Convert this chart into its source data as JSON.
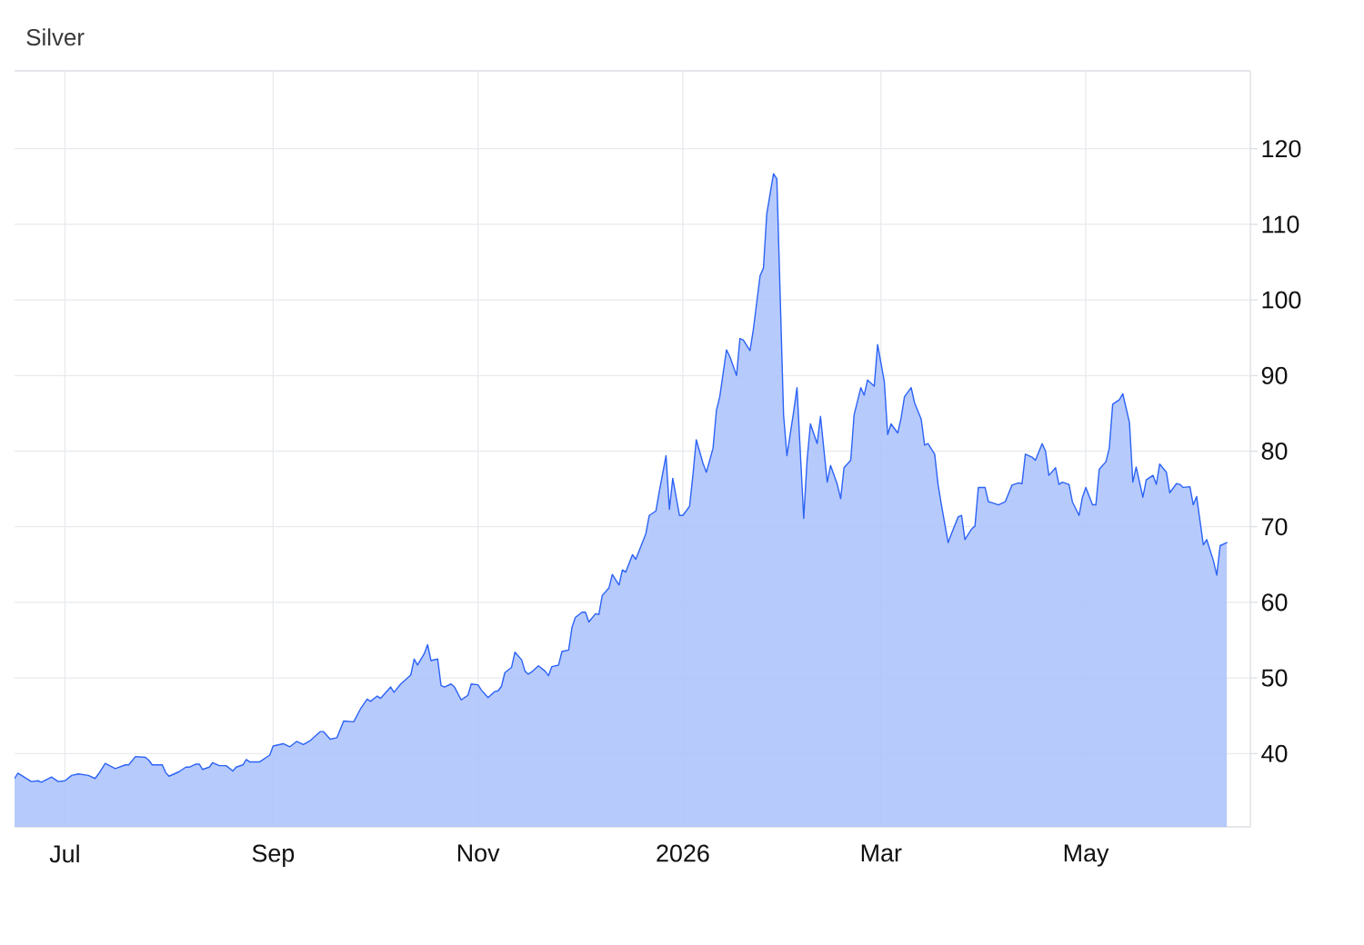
{
  "chart_data": {
    "type": "area",
    "title": "Silver",
    "color": "#2b63f6",
    "x": [
      "2025-06-16",
      "2025-06-17",
      "2025-06-21",
      "2025-06-23",
      "2025-06-24",
      "2025-06-27",
      "2025-06-29",
      "2025-07-01",
      "2025-07-03",
      "2025-07-05",
      "2025-07-08",
      "2025-07-10",
      "2025-07-11",
      "2025-07-13",
      "2025-07-16",
      "2025-07-19",
      "2025-07-20",
      "2025-07-22",
      "2025-07-25",
      "2025-07-26",
      "2025-07-27",
      "2025-07-30",
      "2025-07-31",
      "2025-08-01",
      "2025-08-04",
      "2025-08-06",
      "2025-08-07",
      "2025-08-09",
      "2025-08-10",
      "2025-08-11",
      "2025-08-13",
      "2025-08-14",
      "2025-08-16",
      "2025-08-18",
      "2025-08-20",
      "2025-08-21",
      "2025-08-23",
      "2025-08-24",
      "2025-08-25",
      "2025-08-28",
      "2025-08-31",
      "2025-09-01",
      "2025-09-04",
      "2025-09-06",
      "2025-09-08",
      "2025-09-10",
      "2025-09-12",
      "2025-09-15",
      "2025-09-16",
      "2025-09-18",
      "2025-09-20",
      "2025-09-22",
      "2025-09-25",
      "2025-09-27",
      "2025-09-29",
      "2025-09-30",
      "2025-10-02",
      "2025-10-03",
      "2025-10-05",
      "2025-10-06",
      "2025-10-07",
      "2025-10-09",
      "2025-10-10",
      "2025-10-12",
      "2025-10-13",
      "2025-10-14",
      "2025-10-16",
      "2025-10-17",
      "2025-10-18",
      "2025-10-20",
      "2025-10-21",
      "2025-10-22",
      "2025-10-24",
      "2025-10-25",
      "2025-10-27",
      "2025-10-29",
      "2025-10-30",
      "2025-11-01",
      "2025-11-02",
      "2025-11-04",
      "2025-11-06",
      "2025-11-07",
      "2025-11-08",
      "2025-11-09",
      "2025-11-11",
      "2025-11-12",
      "2025-11-14",
      "2025-11-15",
      "2025-11-16",
      "2025-11-17",
      "2025-11-19",
      "2025-11-21",
      "2025-11-22",
      "2025-11-23",
      "2025-11-25",
      "2025-11-26",
      "2025-11-28",
      "2025-11-29",
      "2025-11-30",
      "2025-12-02",
      "2025-12-03",
      "2025-12-04",
      "2025-12-06",
      "2025-12-07",
      "2025-12-08",
      "2025-12-10",
      "2025-12-11",
      "2025-12-13",
      "2025-12-14",
      "2025-12-15",
      "2025-12-17",
      "2025-12-18",
      "2025-12-21",
      "2025-12-22",
      "2025-12-24",
      "2025-12-25",
      "2025-12-27",
      "2025-12-28",
      "2025-12-29",
      "2025-12-31",
      "2026-01-01",
      "2026-01-03",
      "2026-01-04",
      "2026-01-05",
      "2026-01-07",
      "2026-01-08",
      "2026-01-10",
      "2026-01-11",
      "2026-01-12",
      "2026-01-14",
      "2026-01-15",
      "2026-01-17",
      "2026-01-18",
      "2026-01-19",
      "2026-01-21",
      "2026-01-22",
      "2026-01-24",
      "2026-01-25",
      "2026-01-26",
      "2026-01-28",
      "2026-01-29",
      "2026-01-31",
      "2026-02-01",
      "2026-02-03",
      "2026-02-04",
      "2026-02-06",
      "2026-02-07",
      "2026-02-08",
      "2026-02-10",
      "2026-02-11",
      "2026-02-13",
      "2026-02-14",
      "2026-02-16",
      "2026-02-17",
      "2026-02-18",
      "2026-02-20",
      "2026-02-21",
      "2026-02-23",
      "2026-02-24",
      "2026-02-25",
      "2026-02-27",
      "2026-02-28",
      "2026-03-02",
      "2026-03-03",
      "2026-03-04",
      "2026-03-06",
      "2026-03-07",
      "2026-03-08",
      "2026-03-10",
      "2026-03-11",
      "2026-03-13",
      "2026-03-14",
      "2026-03-15",
      "2026-03-17",
      "2026-03-18",
      "2026-03-19",
      "2026-03-21",
      "2026-03-22",
      "2026-03-24",
      "2026-03-25",
      "2026-03-26",
      "2026-03-28",
      "2026-03-29",
      "2026-03-30",
      "2026-04-01",
      "2026-04-02",
      "2026-04-03",
      "2026-04-05",
      "2026-04-07",
      "2026-04-08",
      "2026-04-09",
      "2026-04-11",
      "2026-04-12",
      "2026-04-13",
      "2026-04-15",
      "2026-04-16",
      "2026-04-18",
      "2026-04-19",
      "2026-04-20",
      "2026-04-22",
      "2026-04-23",
      "2026-04-24",
      "2026-04-26",
      "2026-04-27",
      "2026-04-29",
      "2026-04-30",
      "2026-05-01",
      "2026-05-03",
      "2026-05-04",
      "2026-05-05",
      "2026-05-07",
      "2026-05-08",
      "2026-05-09",
      "2026-05-11",
      "2026-05-12",
      "2026-05-14",
      "2026-05-15",
      "2026-05-16",
      "2026-05-18",
      "2026-05-19",
      "2026-05-21",
      "2026-05-22",
      "2026-05-23",
      "2026-05-25",
      "2026-05-26",
      "2026-05-28",
      "2026-05-29",
      "2026-05-30",
      "2026-06-01",
      "2026-06-02",
      "2026-06-03",
      "2026-06-05",
      "2026-06-06",
      "2026-06-08",
      "2026-06-09",
      "2026-06-10",
      "2026-06-12"
    ],
    "values": [
      36.7,
      37.4,
      36.3,
      36.4,
      36.2,
      36.9,
      36.3,
      36.4,
      37.1,
      37.3,
      37.1,
      36.7,
      37.3,
      38.7,
      38.0,
      38.5,
      38.5,
      39.6,
      39.5,
      39.1,
      38.5,
      38.5,
      37.5,
      37.0,
      37.6,
      38.2,
      38.2,
      38.6,
      38.6,
      37.9,
      38.2,
      38.8,
      38.4,
      38.4,
      37.7,
      38.2,
      38.5,
      39.2,
      38.9,
      38.9,
      39.8,
      41.0,
      41.3,
      40.9,
      41.6,
      41.2,
      41.7,
      42.9,
      42.9,
      41.9,
      42.1,
      44.3,
      44.2,
      45.9,
      47.2,
      46.9,
      47.6,
      47.3,
      48.3,
      48.8,
      48.1,
      49.2,
      49.6,
      50.4,
      52.5,
      51.7,
      53.2,
      54.4,
      52.3,
      52.5,
      49.0,
      48.8,
      49.2,
      48.8,
      47.1,
      47.7,
      49.2,
      49.1,
      48.4,
      47.4,
      48.2,
      48.3,
      48.9,
      50.7,
      51.4,
      53.4,
      52.4,
      50.9,
      50.5,
      50.8,
      51.6,
      50.9,
      50.3,
      51.5,
      51.7,
      53.5,
      53.7,
      56.7,
      58.0,
      58.7,
      58.7,
      57.4,
      58.5,
      58.4,
      60.9,
      61.9,
      63.7,
      62.3,
      64.3,
      64.0,
      66.3,
      65.7,
      69.1,
      71.5,
      72.1,
      74.7,
      79.4,
      72.3,
      76.4,
      71.5,
      71.5,
      72.7,
      76.8,
      81.5,
      78.4,
      77.2,
      80.4,
      85.4,
      87.2,
      93.4,
      92.5,
      90.0,
      94.9,
      94.7,
      93.3,
      96.1,
      103.2,
      104.2,
      111.4,
      116.7,
      116.0,
      84.8,
      79.4,
      85.2,
      88.4,
      71.1,
      78.8,
      83.6,
      81.0,
      84.6,
      75.9,
      78.1,
      75.6,
      73.7,
      77.8,
      78.8,
      84.8,
      88.4,
      87.4,
      89.4,
      88.6,
      94.1,
      89.2,
      82.2,
      83.6,
      82.4,
      84.4,
      87.2,
      88.4,
      86.4,
      84.2,
      80.8,
      81.0,
      79.6,
      75.6,
      72.9,
      67.9,
      69.1,
      71.3,
      71.5,
      68.3,
      69.7,
      70.1,
      75.2,
      75.2,
      73.3,
      73.2,
      72.9,
      73.3,
      74.4,
      75.5,
      75.8,
      75.7,
      79.6,
      79.2,
      78.8,
      81.0,
      80.0,
      76.8,
      77.8,
      75.6,
      75.9,
      75.6,
      73.3,
      71.5,
      73.9,
      75.2,
      72.9,
      72.9,
      77.6,
      78.6,
      80.4,
      86.2,
      86.8,
      87.6,
      83.8,
      75.9,
      77.9,
      73.9,
      76.2,
      76.8,
      75.6,
      78.3,
      77.2,
      74.5,
      75.7,
      75.6,
      75.2,
      75.3,
      72.9,
      74.0,
      67.6,
      68.3,
      65.5,
      63.6,
      67.5,
      67.9
    ],
    "xlim": [
      "2025-06-16",
      "2026-06-19"
    ],
    "xticks": [
      {
        "value": "2025-07-01",
        "label": "Jul"
      },
      {
        "value": "2025-09-01",
        "label": "Sep"
      },
      {
        "value": "2025-11-01",
        "label": "Nov"
      },
      {
        "value": "2026-01-01",
        "label": "2026"
      },
      {
        "value": "2026-03-01",
        "label": "Mar"
      },
      {
        "value": "2026-05-01",
        "label": "May"
      }
    ],
    "ylim": [
      30.3,
      130.3
    ],
    "yticks": [
      40,
      50,
      60,
      70,
      80,
      90,
      100,
      110,
      120
    ],
    "grid": true
  }
}
